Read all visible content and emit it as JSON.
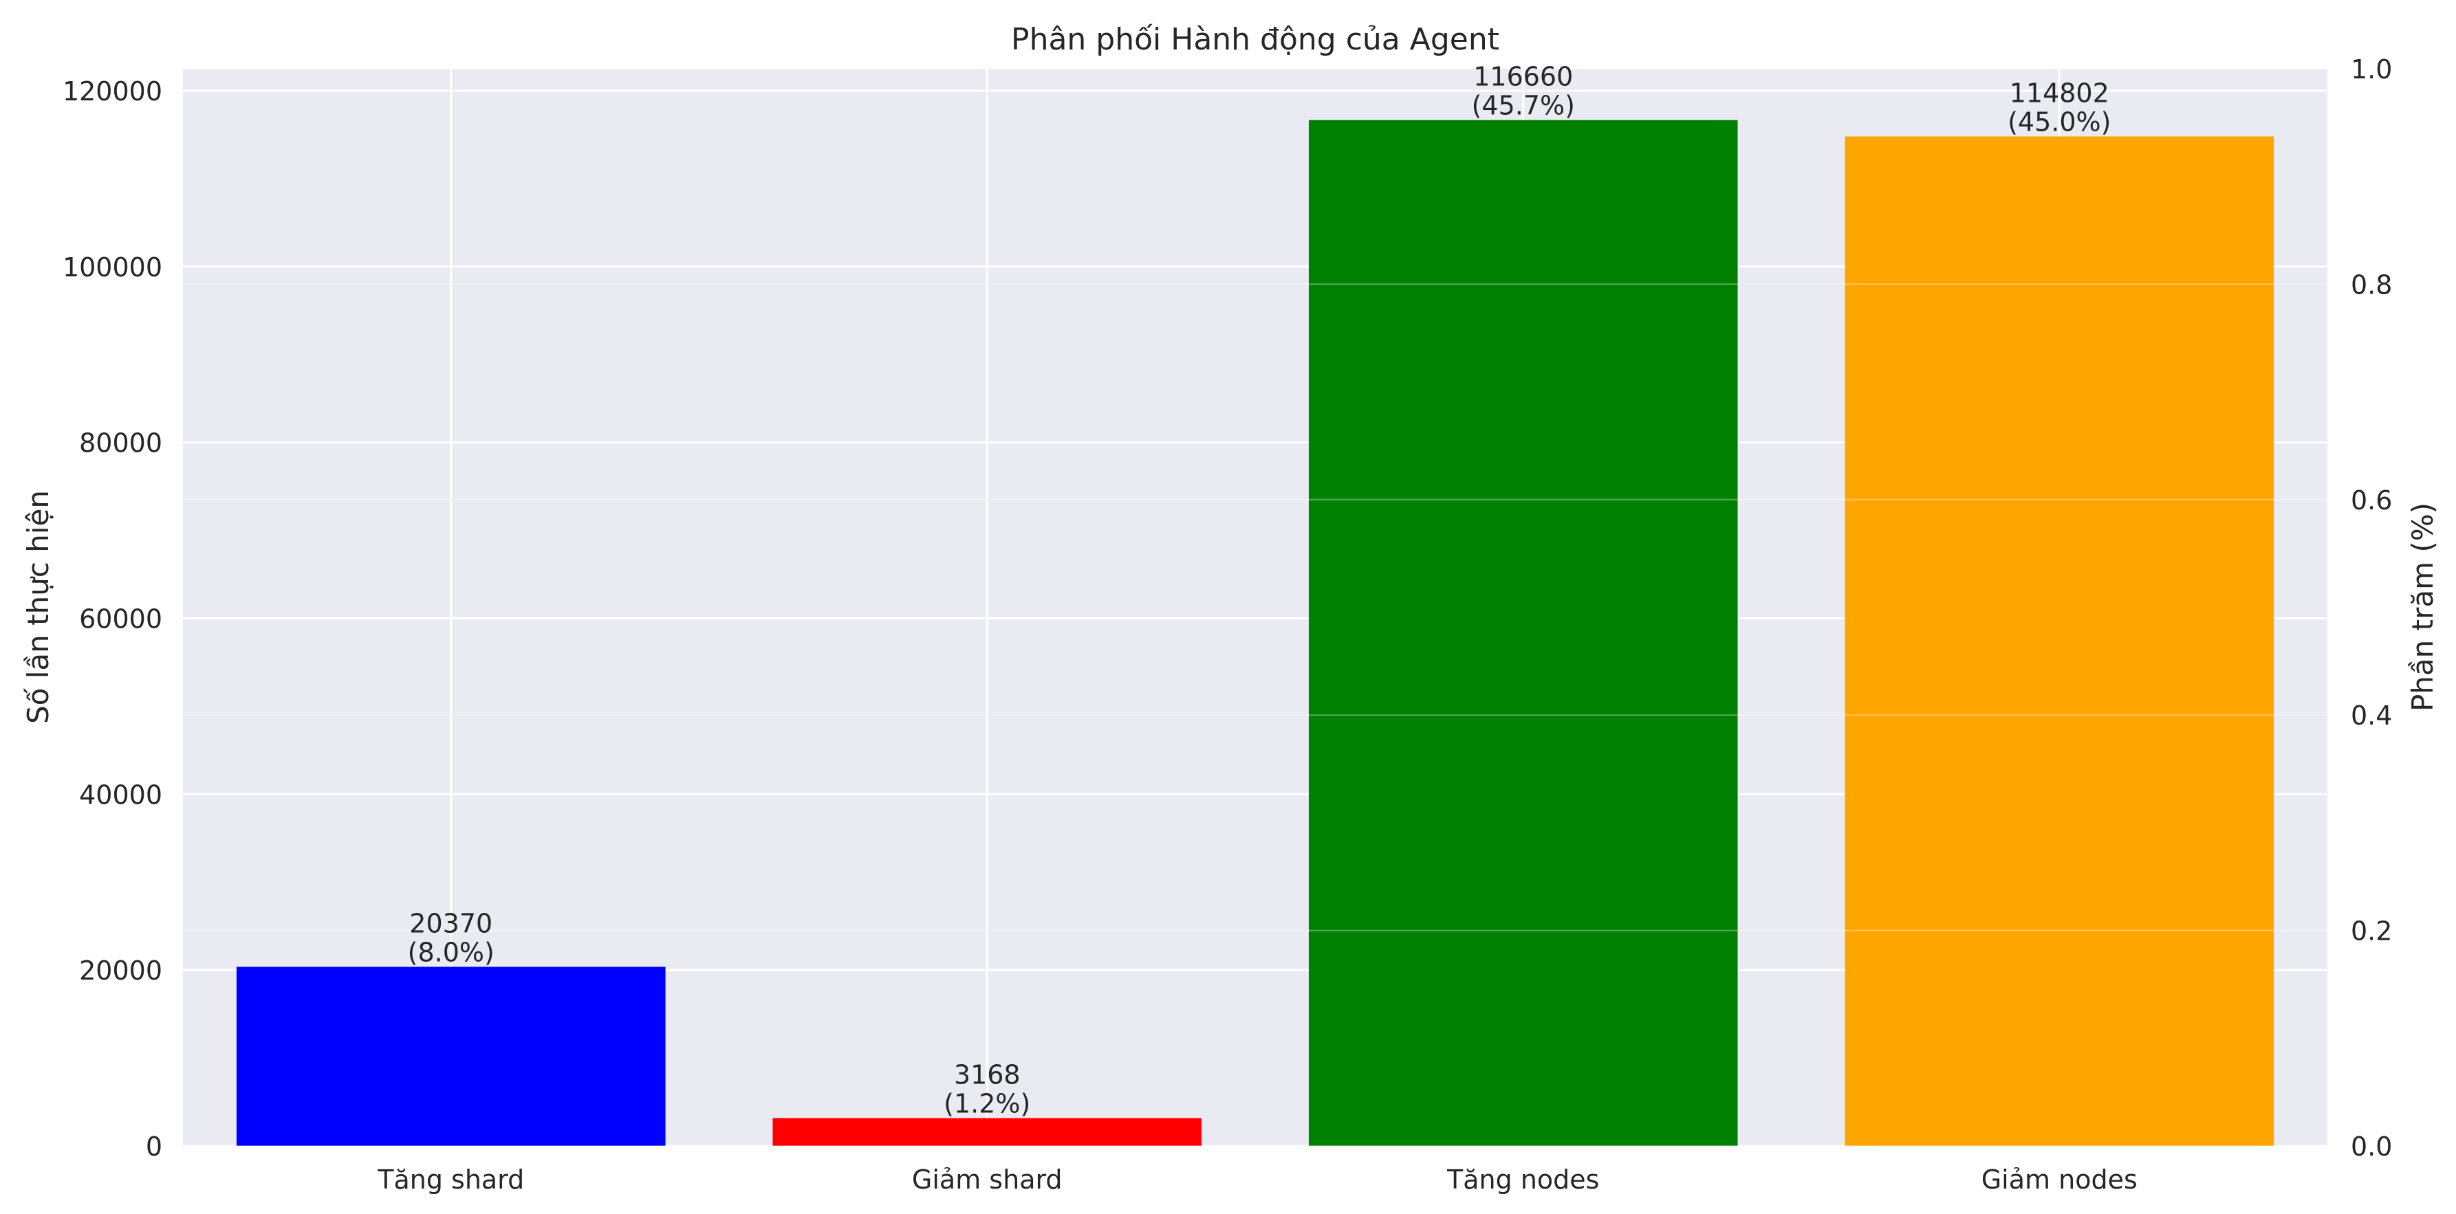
{
  "chart_data": {
    "type": "bar",
    "title": "Phân phối Hành động của Agent",
    "ylabel": "Số lần thực hiện",
    "ylabel_right": "Phần trăm (%)",
    "categories": [
      "Tăng shard",
      "Giảm shard",
      "Tăng nodes",
      "Giảm nodes"
    ],
    "values": [
      20370,
      3168,
      116660,
      114802
    ],
    "percent_labels": [
      "(8.0%)",
      "(1.2%)",
      "(45.7%)",
      "(45.0%)"
    ],
    "value_labels": [
      "20370",
      "3168",
      "116660",
      "114802"
    ],
    "colors": [
      "#0000ff",
      "#ff0000",
      "#008000",
      "#ffa500"
    ],
    "ylim": [
      0,
      122500
    ],
    "yticks": [
      0,
      20000,
      40000,
      60000,
      80000,
      100000,
      120000
    ],
    "ylim_right": [
      0,
      1
    ],
    "yticks_right": [
      "0.0",
      "0.2",
      "0.4",
      "0.6",
      "0.8",
      "1.0"
    ],
    "grid": true,
    "legend": "none"
  },
  "colors": {
    "plot_background": "#eaeaf2",
    "grid": "#ffffff",
    "text": "#262626"
  }
}
